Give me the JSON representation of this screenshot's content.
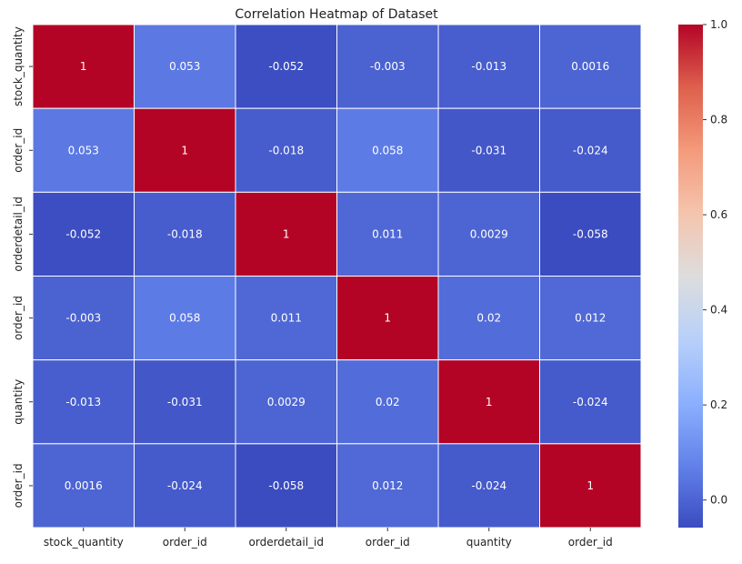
{
  "chart_data": {
    "type": "heatmap",
    "title": "Correlation Heatmap of Dataset",
    "xlabel": "",
    "ylabel": "",
    "x_categories": [
      "stock_quantity",
      "order_id",
      "orderdetail_id",
      "order_id",
      "quantity",
      "order_id"
    ],
    "y_categories": [
      "stock_quantity",
      "order_id",
      "orderdetail_id",
      "order_id",
      "quantity",
      "order_id"
    ],
    "values": [
      [
        1,
        0.053,
        -0.052,
        -0.003,
        -0.013,
        0.0016
      ],
      [
        0.053,
        1,
        -0.018,
        0.058,
        -0.031,
        -0.024
      ],
      [
        -0.052,
        -0.018,
        1,
        0.011,
        0.0029,
        -0.058
      ],
      [
        -0.003,
        0.058,
        0.011,
        1,
        0.02,
        0.012
      ],
      [
        -0.013,
        -0.031,
        0.0029,
        0.02,
        1,
        -0.024
      ],
      [
        0.0016,
        -0.024,
        -0.058,
        0.012,
        -0.024,
        1
      ]
    ],
    "cell_labels": [
      [
        "1",
        "0.053",
        "-0.052",
        "-0.003",
        "-0.013",
        "0.0016"
      ],
      [
        "0.053",
        "1",
        "-0.018",
        "0.058",
        "-0.031",
        "-0.024"
      ],
      [
        "-0.052",
        "-0.018",
        "1",
        "0.011",
        "0.0029",
        "-0.058"
      ],
      [
        "-0.003",
        "0.058",
        "0.011",
        "1",
        "0.02",
        "0.012"
      ],
      [
        "-0.013",
        "-0.031",
        "0.0029",
        "0.02",
        "1",
        "-0.024"
      ],
      [
        "0.0016",
        "-0.024",
        "-0.058",
        "0.012",
        "-0.024",
        "1"
      ]
    ],
    "colormap": "coolwarm",
    "colorbar": {
      "range": [
        -0.058,
        1.0
      ],
      "ticks": [
        0.0,
        0.2,
        0.4,
        0.6,
        0.8,
        1.0
      ],
      "tick_labels": [
        "0.0",
        "0.2",
        "0.4",
        "0.6",
        "0.8",
        "1.0"
      ],
      "placement": "right"
    },
    "grid": true,
    "grid_color": "#ffffff"
  }
}
